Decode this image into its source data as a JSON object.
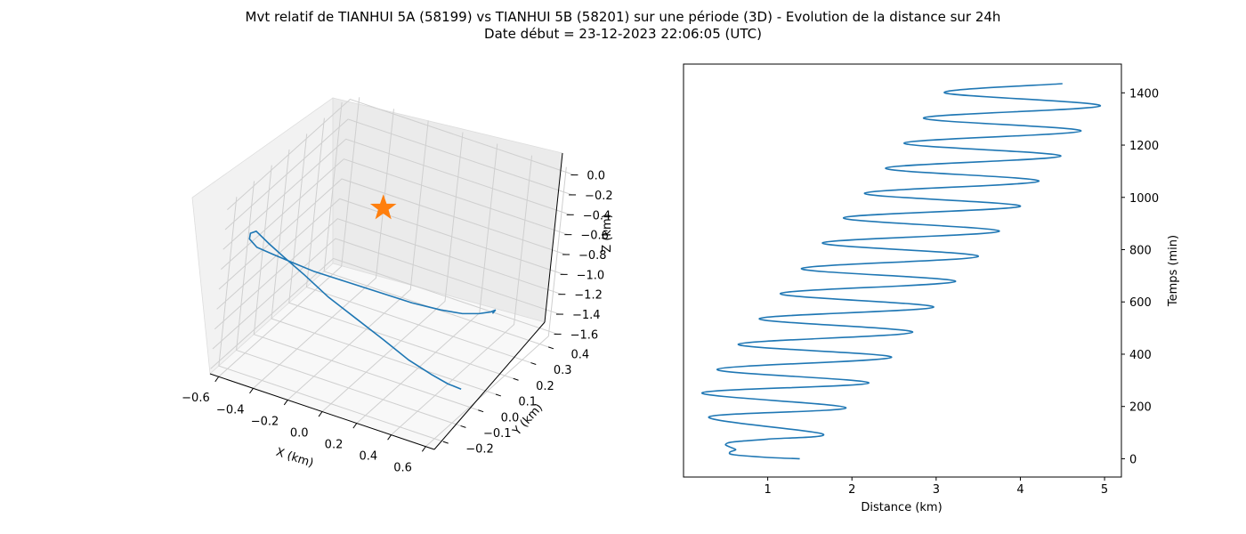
{
  "title": "Mvt relatif de TIANHUI 5A (58199) vs TIANHUI 5B (58201) sur une période (3D) - Evolution de la distance sur 24h",
  "subtitle": "Date début = 23-12-2023 22:06:05 (UTC)",
  "colors": {
    "series": "#1f77b4",
    "marker": "#ff7f0e",
    "pane_left": "#f2f2f2",
    "pane_back": "#ebebeb",
    "pane_floor": "#f8f8f8",
    "grid": "#cfcfcf"
  },
  "chart_data": [
    {
      "type": "line3d",
      "xlabel": "X (km)",
      "ylabel": "Y (km)",
      "zlabel": "Z (km)",
      "xticks": [
        "−0.6",
        "−0.4",
        "−0.2",
        "0.0",
        "0.2",
        "0.4",
        "0.6"
      ],
      "yticks": [
        "−0.2",
        "−0.1",
        "0.0",
        "0.1",
        "0.2",
        "0.3",
        "0.4"
      ],
      "zticks": [
        "0.0",
        "−0.2",
        "−0.4",
        "−0.6",
        "−0.8",
        "−1.0",
        "−1.2",
        "−1.4",
        "−1.6"
      ],
      "xlim": [
        -0.65,
        0.65
      ],
      "ylim": [
        -0.25,
        0.45
      ],
      "zlim": [
        -1.65,
        0.05
      ],
      "grid": true,
      "marker": {
        "shape": "star",
        "x": 0.0,
        "y": 0.0,
        "z": 0.0
      },
      "series": [
        {
          "points": [
            [
              0.48,
              0.07,
              -1.65
            ],
            [
              0.42,
              0.05,
              -1.6
            ],
            [
              0.35,
              0.02,
              -1.5
            ],
            [
              0.25,
              -0.02,
              -1.35
            ],
            [
              0.13,
              -0.06,
              -1.15
            ],
            [
              0.0,
              -0.1,
              -0.95
            ],
            [
              -0.13,
              -0.14,
              -0.75
            ],
            [
              -0.25,
              -0.17,
              -0.55
            ],
            [
              -0.36,
              -0.19,
              -0.4
            ],
            [
              -0.44,
              -0.2,
              -0.3
            ],
            [
              -0.52,
              -0.2,
              -0.22
            ],
            [
              -0.56,
              -0.19,
              -0.28
            ],
            [
              -0.58,
              -0.17,
              -0.38
            ],
            [
              -0.56,
              -0.14,
              -0.5
            ],
            [
              -0.5,
              -0.1,
              -0.6
            ],
            [
              -0.42,
              -0.06,
              -0.7
            ],
            [
              -0.33,
              -0.02,
              -0.8
            ],
            [
              -0.2,
              0.03,
              -0.9
            ],
            [
              -0.05,
              0.08,
              -1.0
            ],
            [
              0.1,
              0.13,
              -1.1
            ],
            [
              0.22,
              0.18,
              -1.18
            ],
            [
              0.3,
              0.23,
              -1.25
            ],
            [
              0.35,
              0.28,
              -1.3
            ],
            [
              0.37,
              0.33,
              -1.35
            ],
            [
              0.36,
              0.37,
              -1.4
            ],
            [
              0.33,
              0.4,
              -1.47
            ],
            [
              0.3,
              0.42,
              -1.55
            ]
          ]
        }
      ]
    },
    {
      "type": "line",
      "xlabel": "Distance (km)",
      "ylabel": "Temps (min)",
      "xticks": [
        "1",
        "2",
        "3",
        "4",
        "5"
      ],
      "yticks": [
        "0",
        "200",
        "400",
        "600",
        "800",
        "1000",
        "1200",
        "1400"
      ],
      "xlim": [
        0.0,
        5.2
      ],
      "ylim": [
        -70,
        1510
      ],
      "series": [
        {
          "points": [
            [
              1.38,
              0
            ],
            [
              1.0,
              5
            ],
            [
              0.6,
              15
            ],
            [
              0.55,
              25
            ],
            [
              0.62,
              35
            ],
            [
              0.55,
              45
            ],
            [
              0.5,
              55
            ],
            [
              0.6,
              65
            ],
            [
              1.0,
              75
            ],
            [
              1.65,
              95
            ],
            [
              0.3,
              160
            ],
            [
              1.93,
              195
            ],
            [
              0.22,
              252
            ],
            [
              2.2,
              290
            ],
            [
              0.4,
              342
            ],
            [
              2.47,
              388
            ],
            [
              0.65,
              438
            ],
            [
              2.72,
              484
            ],
            [
              0.9,
              536
            ],
            [
              2.97,
              580
            ],
            [
              1.15,
              632
            ],
            [
              3.23,
              678
            ],
            [
              1.4,
              728
            ],
            [
              3.5,
              774
            ],
            [
              1.65,
              826
            ],
            [
              3.75,
              870
            ],
            [
              1.9,
              922
            ],
            [
              4.0,
              966
            ],
            [
              2.15,
              1016
            ],
            [
              4.22,
              1062
            ],
            [
              2.4,
              1112
            ],
            [
              4.48,
              1158
            ],
            [
              2.62,
              1208
            ],
            [
              4.72,
              1254
            ],
            [
              2.85,
              1304
            ],
            [
              4.95,
              1350
            ],
            [
              3.1,
              1400
            ],
            [
              4.5,
              1435
            ]
          ]
        }
      ]
    }
  ]
}
